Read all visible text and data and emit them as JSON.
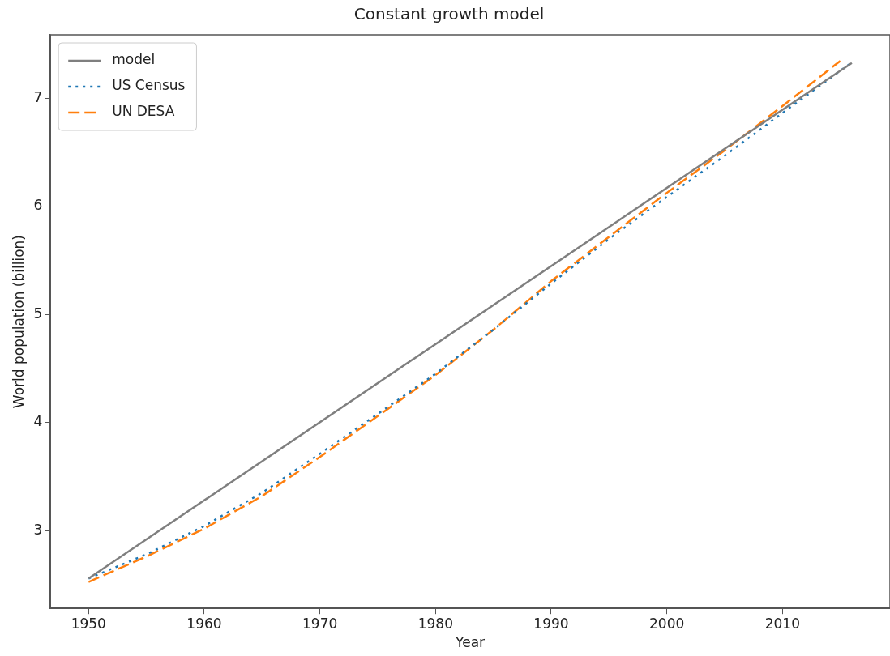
{
  "chart_data": {
    "type": "line",
    "title": "Constant growth model",
    "xlabel": "Year",
    "ylabel": "World population (billion)",
    "xlim": [
      1946.7,
      2019.3
    ],
    "ylim": [
      2.28,
      7.59
    ],
    "xticks": [
      1950,
      1960,
      1970,
      1980,
      1990,
      2000,
      2010
    ],
    "yticks": [
      3,
      4,
      5,
      6,
      7
    ],
    "legend": "top left",
    "marker": "none",
    "grid": false,
    "series": [
      {
        "name": "model",
        "color": "#7f7f7f",
        "line_style": "solid",
        "x": [
          1950,
          2016
        ],
        "values": [
          2.557,
          7.33
        ]
      },
      {
        "name": "US Census",
        "color": "#1f77b4",
        "line_style": "dotted",
        "x": [
          1950,
          1955,
          1960,
          1965,
          1970,
          1975,
          1980,
          1985,
          1990,
          1995,
          2000,
          2005,
          2010,
          2016
        ],
        "values": [
          2.557,
          2.78,
          3.043,
          3.35,
          3.712,
          4.08,
          4.452,
          4.86,
          5.288,
          5.7,
          6.089,
          6.47,
          6.866,
          7.335
        ]
      },
      {
        "name": "UN DESA",
        "color": "#ff7f0e",
        "line_style": "dashed",
        "x": [
          1950,
          1955,
          1960,
          1965,
          1970,
          1975,
          1980,
          1985,
          1990,
          1995,
          2000,
          2005,
          2010,
          2015
        ],
        "values": [
          2.525,
          2.76,
          3.018,
          3.32,
          3.682,
          4.06,
          4.44,
          4.86,
          5.31,
          5.72,
          6.127,
          6.52,
          6.93,
          7.349
        ]
      }
    ]
  }
}
